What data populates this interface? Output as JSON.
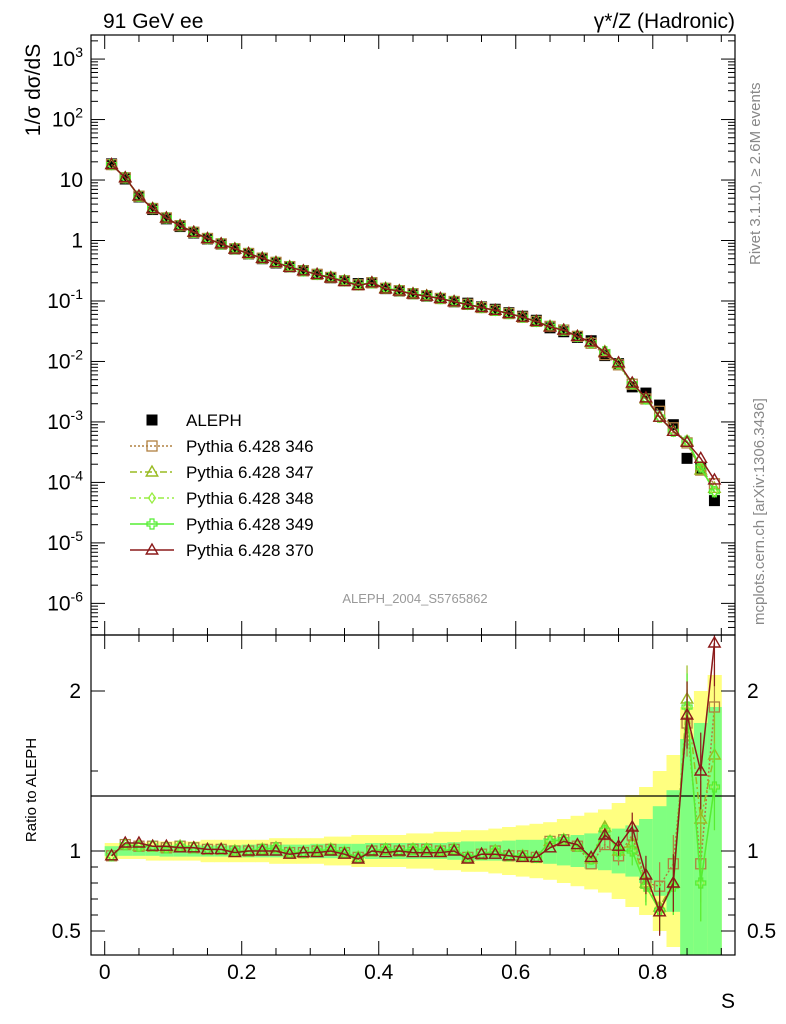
{
  "header": {
    "left": "91 GeV ee",
    "right": "γ*/Z (Hadronic)"
  },
  "side_labels": {
    "top": "Rivet 3.1.10, ≥ 2.6M events",
    "bottom": "mcplots.cern.ch [arXiv:1306.3436]"
  },
  "colors": {
    "data": "#000000",
    "p346": "#b08040",
    "p347": "#99bb22",
    "p348": "#99ee44",
    "p349": "#55ee33",
    "p370": "#8b1a1a",
    "band_outer": "#ffff80",
    "band_inner": "#80ff80"
  },
  "chart_data": [
    {
      "type": "scatter",
      "title": "ALEPH_2004_S5765862",
      "xlabel": "S",
      "ylabel": "1/σ dσ/dS",
      "yscale": "log",
      "xlim": [
        -0.02,
        0.92
      ],
      "ylim": [
        3e-07,
        2500
      ],
      "ytick_labels": [
        "10^{3}",
        "10^{2}",
        "10",
        "1",
        "10^{-1}",
        "10^{-2}",
        "10^{-3}",
        "10^{-4}",
        "10^{-5}",
        "10^{-6}"
      ],
      "xtick_labels": [
        "0",
        "0.2",
        "0.4",
        "0.6",
        "0.8"
      ],
      "legend_position": "bottom-left",
      "x": [
        0.01,
        0.03,
        0.05,
        0.07,
        0.09,
        0.11,
        0.13,
        0.15,
        0.17,
        0.19,
        0.21,
        0.23,
        0.25,
        0.27,
        0.29,
        0.31,
        0.33,
        0.35,
        0.37,
        0.39,
        0.41,
        0.43,
        0.45,
        0.47,
        0.49,
        0.51,
        0.53,
        0.55,
        0.57,
        0.59,
        0.61,
        0.63,
        0.65,
        0.67,
        0.69,
        0.71,
        0.73,
        0.75,
        0.77,
        0.79,
        0.81,
        0.83,
        0.85,
        0.87,
        0.89
      ],
      "series": [
        {
          "name": "ALEPH",
          "values": [
            18.5,
            10.4,
            5.25,
            3.25,
            2.28,
            1.7,
            1.33,
            1.06,
            0.87,
            0.72,
            0.6,
            0.5,
            0.425,
            0.365,
            0.318,
            0.275,
            0.242,
            0.215,
            0.194,
            0.2,
            0.16,
            0.146,
            0.132,
            0.12,
            0.11,
            0.097,
            0.092,
            0.08,
            0.073,
            0.064,
            0.056,
            0.048,
            0.036,
            0.031,
            0.025,
            0.022,
            0.0125,
            0.0092,
            0.0038,
            0.003,
            0.0019,
            0.0009,
            0.00025,
            0.00017,
            5e-05
          ]
        },
        {
          "name": "Pythia 6.428 346",
          "values": [
            18.0,
            10.9,
            5.4,
            3.38,
            2.36,
            1.76,
            1.37,
            1.08,
            0.88,
            0.73,
            0.61,
            0.51,
            0.435,
            0.37,
            0.315,
            0.275,
            0.245,
            0.215,
            0.185,
            0.2,
            0.162,
            0.148,
            0.132,
            0.122,
            0.11,
            0.098,
            0.088,
            0.078,
            0.07,
            0.062,
            0.054,
            0.046,
            0.038,
            0.033,
            0.026,
            0.02,
            0.013,
            0.0088,
            0.0042,
            0.0024,
            0.0015,
            0.0008,
            0.00045,
            0.00016,
            9.5e-05
          ]
        },
        {
          "name": "Pythia 6.428 347",
          "values": [
            18.0,
            10.9,
            5.4,
            3.38,
            2.36,
            1.76,
            1.37,
            1.08,
            0.88,
            0.73,
            0.61,
            0.51,
            0.435,
            0.37,
            0.315,
            0.275,
            0.245,
            0.215,
            0.185,
            0.2,
            0.162,
            0.148,
            0.132,
            0.122,
            0.11,
            0.098,
            0.088,
            0.078,
            0.07,
            0.062,
            0.054,
            0.046,
            0.038,
            0.033,
            0.026,
            0.0205,
            0.0145,
            0.0092,
            0.0043,
            0.0024,
            0.0012,
            0.0007,
            0.00048,
            0.00016,
            8e-05
          ]
        },
        {
          "name": "Pythia 6.428 348",
          "values": [
            18.0,
            10.9,
            5.4,
            3.38,
            2.36,
            1.76,
            1.37,
            1.08,
            0.88,
            0.73,
            0.61,
            0.51,
            0.435,
            0.37,
            0.315,
            0.275,
            0.245,
            0.215,
            0.185,
            0.2,
            0.162,
            0.148,
            0.132,
            0.122,
            0.11,
            0.098,
            0.088,
            0.078,
            0.07,
            0.062,
            0.054,
            0.046,
            0.038,
            0.033,
            0.026,
            0.0205,
            0.0145,
            0.0092,
            0.0043,
            0.0024,
            0.0012,
            0.0007,
            0.00048,
            0.00018,
            7e-05
          ]
        },
        {
          "name": "Pythia 6.428 349",
          "values": [
            18.0,
            10.9,
            5.4,
            3.38,
            2.36,
            1.76,
            1.37,
            1.08,
            0.88,
            0.73,
            0.61,
            0.51,
            0.435,
            0.37,
            0.315,
            0.275,
            0.245,
            0.215,
            0.185,
            0.2,
            0.162,
            0.148,
            0.132,
            0.122,
            0.11,
            0.098,
            0.088,
            0.078,
            0.07,
            0.062,
            0.054,
            0.046,
            0.038,
            0.033,
            0.026,
            0.0205,
            0.0145,
            0.0092,
            0.0043,
            0.0024,
            0.0012,
            0.0007,
            0.00048,
            0.00018,
            7e-05
          ]
        },
        {
          "name": "Pythia 6.428 370",
          "values": [
            18.0,
            10.9,
            5.45,
            3.35,
            2.35,
            1.75,
            1.37,
            1.07,
            0.88,
            0.72,
            0.61,
            0.505,
            0.43,
            0.36,
            0.315,
            0.275,
            0.24,
            0.21,
            0.18,
            0.2,
            0.158,
            0.146,
            0.13,
            0.12,
            0.11,
            0.097,
            0.087,
            0.078,
            0.07,
            0.062,
            0.054,
            0.046,
            0.037,
            0.033,
            0.026,
            0.021,
            0.014,
            0.0095,
            0.0044,
            0.0025,
            0.0012,
            0.0007,
            0.00046,
            0.00025,
            0.00011
          ]
        }
      ]
    },
    {
      "type": "line",
      "ylabel": "Ratio to ALEPH",
      "xlabel": "S",
      "xlim": [
        -0.02,
        0.92
      ],
      "ylim": [
        0.35,
        2.35
      ],
      "ytick_labels": [
        "0.5",
        "1",
        "2"
      ],
      "x": [
        0.01,
        0.03,
        0.05,
        0.07,
        0.09,
        0.11,
        0.13,
        0.15,
        0.17,
        0.19,
        0.21,
        0.23,
        0.25,
        0.27,
        0.29,
        0.31,
        0.33,
        0.35,
        0.37,
        0.39,
        0.41,
        0.43,
        0.45,
        0.47,
        0.49,
        0.51,
        0.53,
        0.55,
        0.57,
        0.59,
        0.61,
        0.63,
        0.65,
        0.67,
        0.69,
        0.71,
        0.73,
        0.75,
        0.77,
        0.79,
        0.81,
        0.83,
        0.85,
        0.87,
        0.89
      ],
      "band_inner": [
        0.03,
        0.03,
        0.03,
        0.03,
        0.035,
        0.035,
        0.035,
        0.035,
        0.035,
        0.035,
        0.04,
        0.04,
        0.04,
        0.04,
        0.04,
        0.045,
        0.045,
        0.045,
        0.045,
        0.05,
        0.05,
        0.05,
        0.05,
        0.05,
        0.05,
        0.055,
        0.06,
        0.06,
        0.06,
        0.065,
        0.07,
        0.07,
        0.08,
        0.09,
        0.1,
        0.11,
        0.12,
        0.14,
        0.16,
        0.2,
        0.28,
        0.38,
        0.7,
        0.8,
        0.9
      ],
      "band_outer": [
        0.05,
        0.05,
        0.05,
        0.06,
        0.06,
        0.06,
        0.06,
        0.07,
        0.07,
        0.07,
        0.07,
        0.07,
        0.08,
        0.08,
        0.08,
        0.08,
        0.09,
        0.09,
        0.1,
        0.1,
        0.1,
        0.1,
        0.11,
        0.11,
        0.12,
        0.12,
        0.13,
        0.13,
        0.14,
        0.15,
        0.16,
        0.17,
        0.18,
        0.2,
        0.22,
        0.24,
        0.26,
        0.3,
        0.35,
        0.4,
        0.5,
        0.6,
        0.9,
        1.0,
        1.1
      ],
      "series": [
        {
          "name": "Pythia 6.428 346",
          "values": [
            0.97,
            1.04,
            1.03,
            1.03,
            1.02,
            1.03,
            1.02,
            1.01,
            1.01,
            1.0,
            1.0,
            1.01,
            1.02,
            0.99,
            0.99,
            1.0,
            1.01,
            0.99,
            0.96,
            1.0,
            1.01,
            1.0,
            1.01,
            1.01,
            1.0,
            1.01,
            0.96,
            0.98,
            1.0,
            0.97,
            0.97,
            0.96,
            1.06,
            1.07,
            1.03,
            0.92,
            1.04,
            0.97,
            1.1,
            0.8,
            0.78,
            0.92,
            1.8,
            0.92,
            1.9
          ]
        },
        {
          "name": "Pythia 6.428 347",
          "values": [
            0.97,
            1.04,
            1.03,
            1.03,
            1.02,
            1.03,
            1.02,
            1.01,
            1.01,
            1.0,
            1.0,
            1.01,
            1.02,
            0.99,
            0.99,
            1.0,
            1.01,
            0.99,
            0.96,
            1.0,
            1.01,
            1.0,
            1.01,
            1.01,
            1.0,
            1.01,
            0.96,
            0.98,
            1.0,
            0.97,
            0.97,
            0.96,
            1.06,
            1.07,
            1.03,
            0.95,
            1.15,
            1.0,
            1.05,
            0.8,
            0.65,
            0.8,
            1.95,
            1.2,
            1.6
          ]
        },
        {
          "name": "Pythia 6.428 348",
          "values": [
            0.97,
            1.04,
            1.03,
            1.03,
            1.02,
            1.03,
            1.02,
            1.01,
            1.01,
            1.0,
            1.0,
            1.01,
            1.02,
            0.99,
            0.99,
            1.0,
            1.01,
            0.99,
            0.96,
            1.0,
            1.01,
            1.0,
            1.01,
            1.01,
            1.0,
            1.01,
            0.96,
            0.98,
            1.0,
            0.97,
            0.97,
            0.96,
            1.06,
            1.07,
            1.03,
            0.95,
            1.13,
            1.0,
            1.0,
            0.78,
            0.63,
            0.78,
            1.9,
            0.8,
            1.4
          ]
        },
        {
          "name": "Pythia 6.428 349",
          "values": [
            0.97,
            1.04,
            1.03,
            1.03,
            1.02,
            1.03,
            1.02,
            1.01,
            1.01,
            1.0,
            1.0,
            1.01,
            1.02,
            0.99,
            0.99,
            1.0,
            1.01,
            0.99,
            0.96,
            1.0,
            1.01,
            1.0,
            1.01,
            1.01,
            1.0,
            1.01,
            0.96,
            0.98,
            1.0,
            0.97,
            0.97,
            0.96,
            1.06,
            1.07,
            1.03,
            0.95,
            1.13,
            1.0,
            1.0,
            0.78,
            0.63,
            0.78,
            1.9,
            0.8,
            1.4
          ]
        },
        {
          "name": "Pythia 6.428 370",
          "values": [
            0.97,
            1.05,
            1.05,
            1.03,
            1.03,
            1.02,
            1.02,
            1.01,
            1.01,
            0.99,
            1.0,
            1.0,
            1.0,
            0.98,
            0.99,
            0.99,
            1.0,
            0.98,
            0.95,
            1.0,
            0.99,
            1.0,
            0.99,
            0.99,
            0.99,
            1.0,
            0.95,
            0.98,
            0.98,
            0.97,
            0.96,
            0.96,
            1.02,
            1.06,
            1.04,
            0.96,
            1.1,
            1.03,
            1.15,
            0.85,
            0.62,
            0.8,
            1.85,
            1.5,
            2.3
          ]
        }
      ]
    }
  ]
}
